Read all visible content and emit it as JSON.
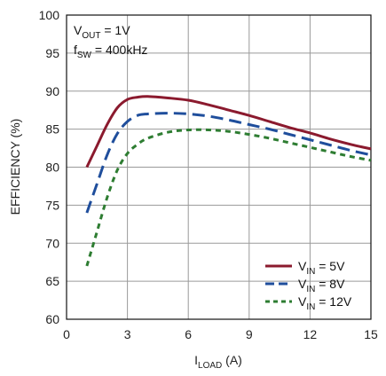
{
  "chart_data": {
    "type": "line",
    "xlabel": {
      "main": "I",
      "sub": "LOAD",
      "rest": " (A)"
    },
    "ylabel": "EFFICIENCY (%)",
    "xlim": [
      0,
      15
    ],
    "ylim": [
      60,
      100
    ],
    "xticks": [
      0,
      3,
      6,
      9,
      12,
      15
    ],
    "yticks": [
      60,
      65,
      70,
      75,
      80,
      85,
      90,
      95,
      100
    ],
    "grid": true,
    "legend_position": "bottom-right",
    "annotations": [
      {
        "main": "V",
        "sub": "OUT",
        "rest": " = 1V"
      },
      {
        "main": "f",
        "sub": "SW",
        "rest": " = 400kHz"
      }
    ],
    "series": [
      {
        "label_main": "V",
        "label_sub": "IN",
        "label_rest": " = 5V",
        "color": "#8b1a2e",
        "dash": "solid",
        "x": [
          1,
          1.5,
          2,
          2.5,
          3,
          3.5,
          4,
          5,
          6,
          7,
          8,
          9,
          10,
          11,
          12,
          13,
          14,
          15
        ],
        "y": [
          80.0,
          82.8,
          85.6,
          87.8,
          88.9,
          89.2,
          89.3,
          89.1,
          88.8,
          88.2,
          87.5,
          86.8,
          86.0,
          85.2,
          84.5,
          83.7,
          83.0,
          82.4
        ]
      },
      {
        "label_main": "V",
        "label_sub": "IN",
        "label_rest": " = 8V",
        "color": "#1f4e9c",
        "dash": "long",
        "x": [
          1,
          1.5,
          2,
          2.5,
          3,
          3.5,
          4,
          5,
          6,
          7,
          8,
          9,
          10,
          11,
          12,
          13,
          14,
          15
        ],
        "y": [
          74.0,
          77.8,
          81.6,
          84.4,
          86.0,
          86.8,
          87.0,
          87.1,
          87.0,
          86.7,
          86.2,
          85.6,
          85.0,
          84.3,
          83.6,
          82.9,
          82.2,
          81.6
        ]
      },
      {
        "label_main": "V",
        "label_sub": "IN",
        "label_rest": " = 12V",
        "color": "#2e7d32",
        "dash": "short",
        "x": [
          1,
          1.5,
          2,
          2.5,
          3,
          3.5,
          4,
          5,
          6,
          7,
          8,
          9,
          10,
          11,
          12,
          13,
          14,
          15
        ],
        "y": [
          67.0,
          71.5,
          76.0,
          79.6,
          81.8,
          83.0,
          83.8,
          84.6,
          84.9,
          84.9,
          84.7,
          84.3,
          83.8,
          83.2,
          82.6,
          82.0,
          81.4,
          80.9
        ]
      }
    ]
  }
}
